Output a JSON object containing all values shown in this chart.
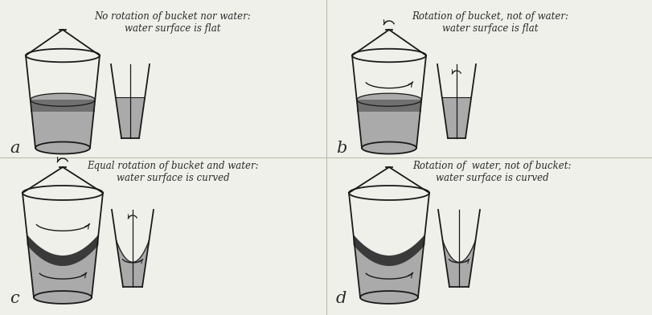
{
  "bg_color": "#f0f0eb",
  "panel_labels": [
    "a",
    "b",
    "c",
    "d"
  ],
  "panel_texts": [
    "No rotation of bucket nor water:\nwater surface is flat",
    "Rotation of bucket, not of water:\nwater surface is flat",
    "Equal rotation of bucket and water:\nwater surface is curved",
    "Rotation of  water, not of bucket:\nwater surface is curved"
  ],
  "text_color": "#2a2a2a",
  "water_gray": "#aaaaaa",
  "water_dark": "#3a3a3a",
  "line_color": "#1a1a1a",
  "lw": 1.3
}
